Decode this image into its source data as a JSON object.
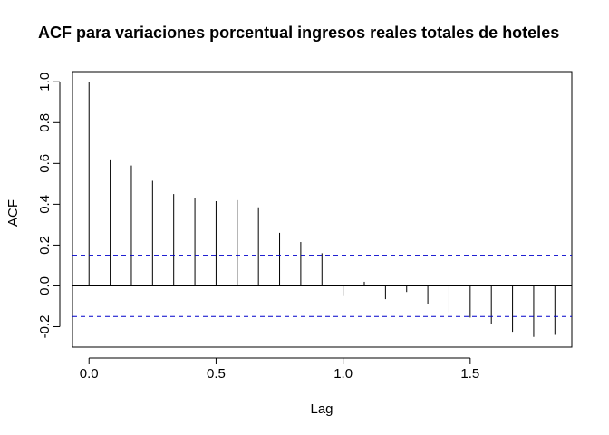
{
  "chart_data": {
    "type": "bar",
    "title": "ACF para variaciones porcentual ingresos reales totales de hoteles",
    "xlabel": "Lag",
    "ylabel": "ACF",
    "xlim": [
      -0.065,
      1.9
    ],
    "ylim": [
      -0.3,
      1.05
    ],
    "x_ticks": [
      0.0,
      0.5,
      1.0,
      1.5
    ],
    "x_tick_labels": [
      "0.0",
      "0.5",
      "1.0",
      "1.5"
    ],
    "y_ticks": [
      -0.2,
      0.0,
      0.2,
      0.4,
      0.6,
      0.8,
      1.0
    ],
    "y_tick_labels": [
      "-0.2",
      "0.0",
      "0.2",
      "0.4",
      "0.6",
      "0.8",
      "1.0"
    ],
    "lags": [
      0.0,
      0.0833,
      0.1667,
      0.25,
      0.3333,
      0.4167,
      0.5,
      0.5833,
      0.6667,
      0.75,
      0.8333,
      0.9167,
      1.0,
      1.0833,
      1.1667,
      1.25,
      1.3333,
      1.4167,
      1.5,
      1.5833,
      1.6667,
      1.75,
      1.8333
    ],
    "values": [
      1.0,
      0.62,
      0.59,
      0.515,
      0.45,
      0.43,
      0.415,
      0.42,
      0.385,
      0.26,
      0.215,
      0.16,
      -0.05,
      0.02,
      -0.065,
      -0.03,
      -0.09,
      -0.13,
      -0.155,
      -0.185,
      -0.225,
      -0.25,
      -0.24
    ],
    "confidence_bounds": [
      0.15,
      -0.15
    ],
    "colors": {
      "bars": "#000000",
      "confidence": "#0000cc",
      "zero_line": "#000000",
      "frame": "#000000"
    },
    "grid": false
  }
}
